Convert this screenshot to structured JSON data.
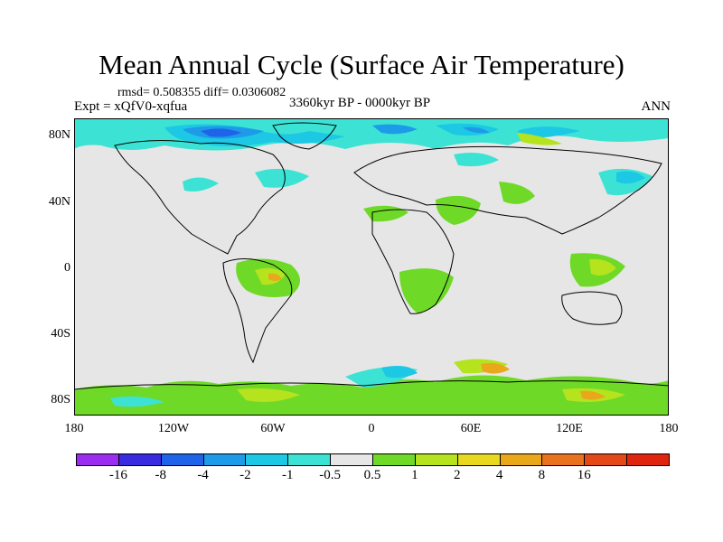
{
  "header": {
    "title": "Mean Annual Cycle (Surface Air Temperature)",
    "stats": "rmsd= 0.508355 diff= 0.0306082",
    "period": "3360kyr BP - 0000kyr BP",
    "experiment": "Expt = xQfV0-xqfua",
    "season": "ANN"
  },
  "axes": {
    "lat_labels": [
      "80N",
      "40N",
      "0",
      "40S",
      "80S"
    ],
    "lon_labels": [
      "180",
      "120W",
      "60W",
      "0",
      "60E",
      "120E",
      "180"
    ]
  },
  "colorbar": {
    "colors": [
      "#9b2df0",
      "#3a2ae0",
      "#1f63e8",
      "#1e9be8",
      "#1dc8e4",
      "#3ce3d4",
      "#e6e6e6",
      "#6fd927",
      "#b5e31e",
      "#e8d81f",
      "#e9a81c",
      "#e8721d",
      "#e34819",
      "#e0250f"
    ],
    "labels": [
      "-16",
      "-8",
      "-4",
      "-2",
      "-1",
      "-0.5",
      "0.5",
      "1",
      "2",
      "4",
      "8",
      "16"
    ]
  },
  "palette": {
    "background": "#e6e6e6",
    "cyan": "#3ce3d4",
    "light_blue": "#1dc8e4",
    "blue": "#1e9be8",
    "dark_blue": "#1f63e8",
    "green": "#6fd927",
    "yellow_green": "#b5e31e",
    "orange": "#e9a81c",
    "red": "#e34819"
  }
}
